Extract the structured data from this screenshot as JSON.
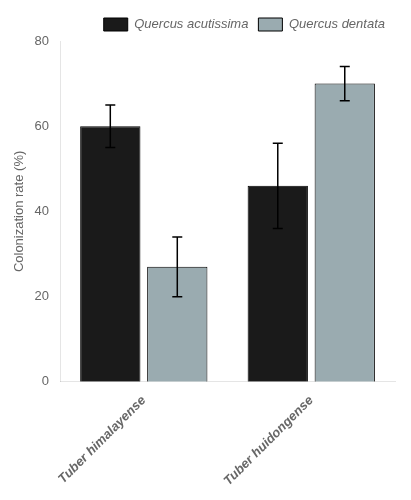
{
  "chart_data": {
    "type": "bar",
    "categories": [
      "Tuber himalayense",
      "Tuber huidongense"
    ],
    "series": [
      {
        "name": "Quercus acutissima",
        "color": "#1a1a1a",
        "values": [
          60,
          46
        ],
        "errors": [
          5,
          10
        ]
      },
      {
        "name": "Quercus dentata",
        "color": "#9aabb0",
        "values": [
          27,
          70
        ],
        "errors": [
          7,
          4
        ]
      }
    ],
    "ylabel": "Colonization rate (%)",
    "ylim": [
      0,
      80
    ],
    "yticks": [
      0,
      20,
      40,
      60,
      80
    ],
    "grid": false,
    "legend": "upper right"
  }
}
